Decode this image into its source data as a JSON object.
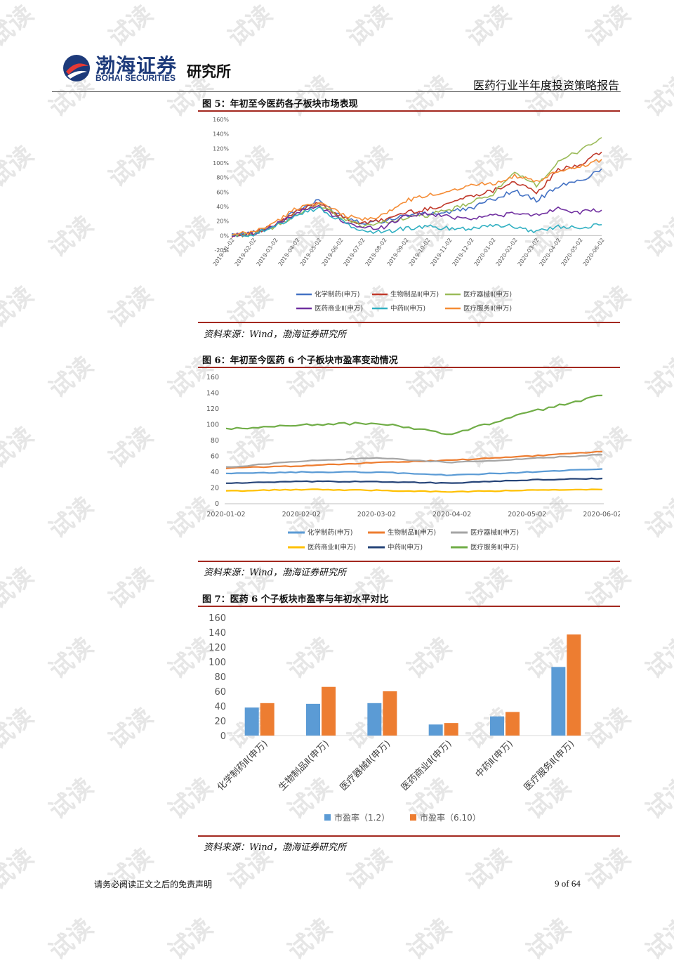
{
  "header": {
    "logo_cn": "渤海证券",
    "logo_en": "BOHAI SECURITIES",
    "institute": "研究所",
    "report_title": "医药行业半年度投资策略报告"
  },
  "watermark": "试读",
  "figures": [
    {
      "title": "图 5：年初至今医药各子板块市场表现",
      "source": "资料来源：Wind，渤海证券研究所"
    },
    {
      "title": "图 6：年初至今医药 6 个子板块市盈率变动情况",
      "source": "资料来源：Wind，渤海证券研究所"
    },
    {
      "title": "图 7：医药 6 个子板块市盈率与年初水平对比",
      "source": "资料来源：Wind，渤海证券研究所"
    }
  ],
  "footer": {
    "disclaimer": "请务必阅读正文之后的免责声明",
    "page": "9 of 64"
  },
  "chart_data": [
    {
      "type": "line",
      "ylim": [
        -20,
        160
      ],
      "yticks": [
        "-20%",
        "0%",
        "20%",
        "40%",
        "60%",
        "80%",
        "100%",
        "120%",
        "140%",
        "160%"
      ],
      "x": [
        "2019-01-02",
        "2019-02-02",
        "2019-03-02",
        "2019-04-02",
        "2019-05-02",
        "2019-06-02",
        "2019-07-02",
        "2019-08-02",
        "2019-09-02",
        "2019-10-02",
        "2019-11-02",
        "2019-12-02",
        "2020-01-02",
        "2020-02-02",
        "2020-03-02",
        "2020-04-02",
        "2020-05-02",
        "2020-06-02"
      ],
      "legend_position": "bottom",
      "series": [
        {
          "name": "化学制药(申万)",
          "color": "#4472c4",
          "values": [
            0,
            4,
            15,
            35,
            48,
            28,
            18,
            20,
            28,
            30,
            32,
            38,
            50,
            62,
            48,
            68,
            75,
            92
          ]
        },
        {
          "name": "生物制品Ⅱ(申万)",
          "color": "#c0392b",
          "values": [
            0,
            3,
            14,
            33,
            46,
            26,
            16,
            22,
            32,
            36,
            45,
            55,
            62,
            75,
            58,
            90,
            98,
            115
          ]
        },
        {
          "name": "医疗器械Ⅱ(申万)",
          "color": "#9bbb59",
          "values": [
            0,
            2,
            12,
            30,
            42,
            24,
            14,
            18,
            24,
            28,
            35,
            45,
            58,
            85,
            70,
            100,
            118,
            135
          ]
        },
        {
          "name": "医药商业Ⅱ(申万)",
          "color": "#7030a0",
          "values": [
            0,
            3,
            14,
            32,
            40,
            22,
            10,
            12,
            28,
            30,
            26,
            24,
            28,
            30,
            28,
            38,
            32,
            35
          ]
        },
        {
          "name": "中药Ⅱ(申万)",
          "color": "#31b0c2",
          "values": [
            0,
            2,
            12,
            30,
            38,
            20,
            6,
            5,
            10,
            12,
            10,
            10,
            15,
            12,
            6,
            12,
            12,
            15
          ]
        },
        {
          "name": "医疗服务Ⅱ(申万)",
          "color": "#f58c35",
          "values": [
            0,
            5,
            18,
            38,
            46,
            30,
            22,
            28,
            48,
            55,
            62,
            70,
            72,
            82,
            74,
            88,
            95,
            105
          ]
        }
      ]
    },
    {
      "type": "line",
      "ylim": [
        0,
        160
      ],
      "yticks": [
        "0",
        "20",
        "40",
        "60",
        "80",
        "100",
        "120",
        "140",
        "160"
      ],
      "x": [
        "2020-01-02",
        "2020-02-02",
        "2020-03-02",
        "2020-04-02",
        "2020-05-02",
        "2020-06-02"
      ],
      "legend_position": "bottom",
      "series": [
        {
          "name": "化学制药(申万)",
          "color": "#5b9bd5",
          "values": [
            38,
            40,
            40,
            36,
            40,
            44
          ]
        },
        {
          "name": "生物制品Ⅱ(申万)",
          "color": "#ed7d31",
          "values": [
            45,
            48,
            52,
            55,
            60,
            66
          ]
        },
        {
          "name": "医疗器械Ⅱ(申万)",
          "color": "#a5a5a5",
          "values": [
            46,
            54,
            58,
            52,
            57,
            62
          ]
        },
        {
          "name": "医药商业Ⅱ(申万)",
          "color": "#ffc000",
          "values": [
            16,
            18,
            17,
            15,
            17,
            18
          ]
        },
        {
          "name": "中药Ⅱ(申万)",
          "color": "#264478",
          "values": [
            26,
            28,
            28,
            26,
            30,
            32
          ]
        },
        {
          "name": "医疗服务Ⅱ(申万)",
          "color": "#70ad47",
          "values": [
            94,
            100,
            102,
            88,
            115,
            137
          ]
        }
      ]
    },
    {
      "type": "bar",
      "ylim": [
        0,
        160
      ],
      "yticks": [
        "0",
        "20",
        "40",
        "60",
        "80",
        "100",
        "120",
        "140",
        "160"
      ],
      "categories": [
        "化学制药Ⅱ(申万)",
        "生物制品Ⅱ(申万)",
        "医疗器械Ⅱ(申万)",
        "医药商业Ⅱ(申万)",
        "中药Ⅱ(申万)",
        "医疗服务Ⅱ(申万)"
      ],
      "legend_position": "bottom",
      "series": [
        {
          "name": "市盈率（1.2）",
          "color": "#5b9bd5",
          "values": [
            38,
            43,
            44,
            15,
            26,
            93
          ]
        },
        {
          "name": "市盈率（6.10）",
          "color": "#ed7d31",
          "values": [
            44,
            66,
            60,
            17,
            32,
            137
          ]
        }
      ]
    }
  ]
}
